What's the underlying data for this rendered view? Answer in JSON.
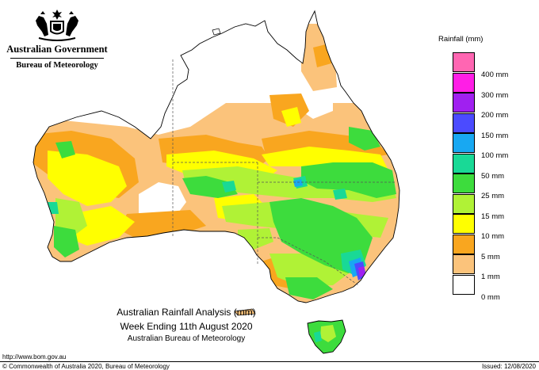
{
  "header": {
    "government_name": "Australian Government",
    "bureau_name": "Bureau of Meteorology",
    "crest_icon": "coat-of-arms-icon"
  },
  "legend": {
    "title": "Rainfall (mm)",
    "items": [
      {
        "label": "400 mm",
        "color": "#ff66b2"
      },
      {
        "label": "300 mm",
        "color": "#ff1ee6"
      },
      {
        "label": "200 mm",
        "color": "#a020f0"
      },
      {
        "label": "150 mm",
        "color": "#4b4bff"
      },
      {
        "label": "100 mm",
        "color": "#18a8f2"
      },
      {
        "label": "50 mm",
        "color": "#19d996"
      },
      {
        "label": "25 mm",
        "color": "#3ddc3d"
      },
      {
        "label": "15 mm",
        "color": "#b0f236"
      },
      {
        "label": "10 mm",
        "color": "#ffff00"
      },
      {
        "label": "5 mm",
        "color": "#f9a61f"
      },
      {
        "label": "1 mm",
        "color": "#fbc37b"
      },
      {
        "label": "0 mm",
        "color": "#ffffff"
      }
    ]
  },
  "caption": {
    "line1": "Australian Rainfall Analysis (mm)",
    "line2": "Week Ending 11th August 2020",
    "line3": "Australian Bureau of Meteorology"
  },
  "footer": {
    "url": "http://www.bom.gov.au",
    "copyright": "© Commonwealth of Australia 2020, Bureau of Meteorology",
    "issued": "Issued: 12/08/2020"
  }
}
